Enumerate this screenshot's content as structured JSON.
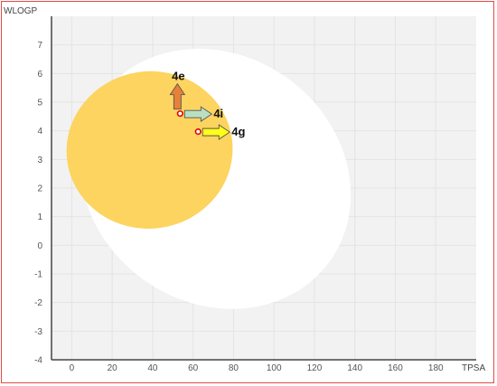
{
  "chart_data": {
    "type": "scatter",
    "xlabel": "TPSA",
    "ylabel": "WLOGP",
    "xlim": [
      -10,
      200
    ],
    "ylim": [
      -4,
      8
    ],
    "x_ticks": [
      0,
      20,
      40,
      60,
      80,
      100,
      120,
      140,
      160,
      180
    ],
    "y_ticks": [
      -4,
      -3,
      -2,
      -1,
      0,
      1,
      2,
      3,
      4,
      5,
      6,
      7
    ],
    "grid": true,
    "regions": [
      {
        "role": "white-region",
        "color": "#ffffff"
      },
      {
        "role": "yolk-region",
        "color": "#fcd45f"
      }
    ],
    "points": [
      {
        "label": "4e",
        "x": 53.6,
        "y": 4.6,
        "arrow_color": "#e8803a",
        "arrow_direction": "up"
      },
      {
        "label": "4i",
        "x": 53.6,
        "y": 4.6,
        "arrow_color": "#b9dfc2",
        "arrow_direction": "right"
      },
      {
        "label": "4g",
        "x": 62.5,
        "y": 3.97,
        "arrow_color": "#ffff1a",
        "arrow_direction": "right"
      }
    ],
    "point_color": "#e00000",
    "frame_color": "#e34a4a"
  }
}
